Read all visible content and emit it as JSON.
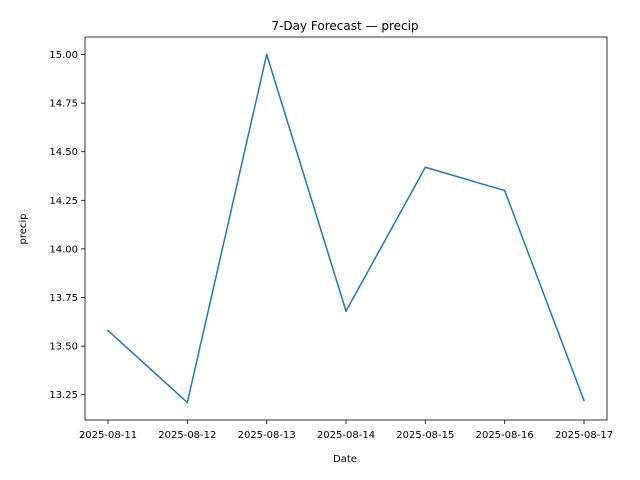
{
  "chart_data": {
    "type": "line",
    "title": "7-Day Forecast — precip",
    "xlabel": "Date",
    "ylabel": "precip",
    "x": [
      "2025-08-11",
      "2025-08-12",
      "2025-08-13",
      "2025-08-14",
      "2025-08-15",
      "2025-08-16",
      "2025-08-17"
    ],
    "series": [
      {
        "values": [
          13.58,
          13.21,
          15.0,
          13.68,
          14.42,
          14.3,
          13.22
        ],
        "color": "#1f77b4"
      }
    ],
    "yticks": [
      "13.25",
      "13.50",
      "13.75",
      "14.00",
      "14.25",
      "14.50",
      "14.75",
      "15.00"
    ],
    "ylim": [
      13.12,
      15.09
    ],
    "grid": false,
    "legend": "none"
  }
}
